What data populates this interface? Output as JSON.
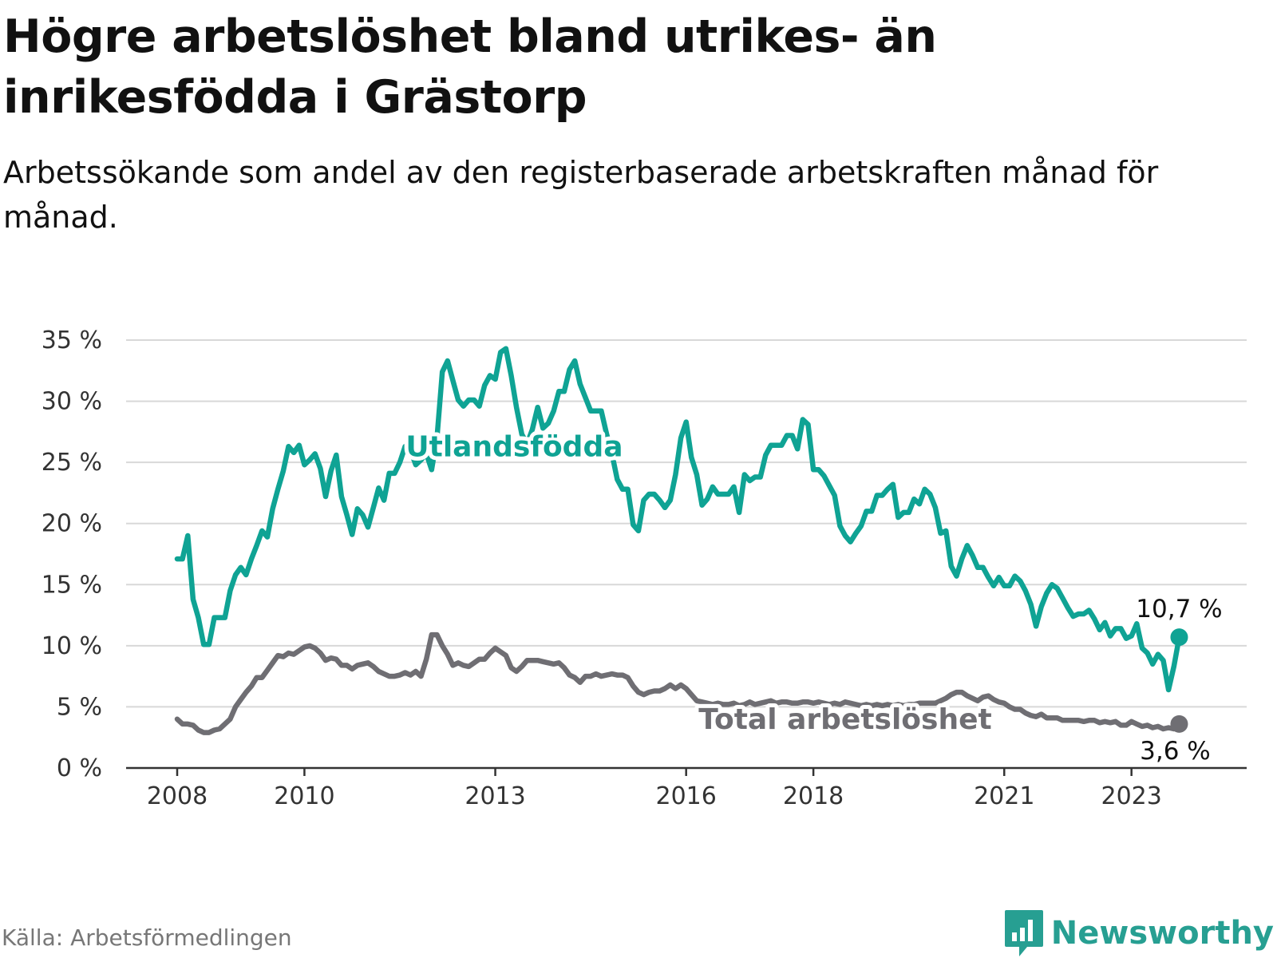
{
  "header": {
    "title": "Högre arbetslöshet bland utrikes- än inrikesfödda i Grästorp",
    "subtitle": "Arbetssökande som andel av den registerbaserade arbetskraften månad för månad."
  },
  "footer": {
    "source": "Källa: Arbetsförmedlingen",
    "brand": "Newsworthy"
  },
  "colors": {
    "utlandsfodda": "#0fa394",
    "total": "#6f6e73",
    "grid": "#d8d8d8",
    "axis": "#333333",
    "brand": "#279f92"
  },
  "chart_data": {
    "type": "line",
    "title": "Högre arbetslöshet bland utrikes- än inrikesfödda i Grästorp",
    "xlabel": "",
    "ylabel": "",
    "xlim": [
      2008.0,
      2024.083
    ],
    "ylim": [
      0,
      35
    ],
    "yticks": [
      0,
      5,
      10,
      15,
      20,
      25,
      30,
      35
    ],
    "ytick_labels": [
      "0 %",
      "5 %",
      "10 %",
      "15 %",
      "20 %",
      "25 %",
      "30 %",
      "35 %"
    ],
    "xticks": [
      2008,
      2010,
      2013,
      2016,
      2018,
      2021,
      2023
    ],
    "xtick_labels": [
      "2008",
      "2010",
      "2013",
      "2016",
      "2018",
      "2021",
      "2023"
    ],
    "grid": true,
    "legend": "inline labels",
    "series": [
      {
        "name": "Utlandsfödda",
        "label": "Utlandsfödda",
        "end_label": "10,7 %",
        "x": [
          2008.0,
          2008.083,
          2008.167,
          2008.25,
          2008.333,
          2008.417,
          2008.5,
          2008.583,
          2008.667,
          2008.75,
          2008.833,
          2008.917,
          2009.0,
          2009.083,
          2009.167,
          2009.25,
          2009.333,
          2009.417,
          2009.5,
          2009.583,
          2009.667,
          2009.75,
          2009.833,
          2009.917,
          2010.0,
          2010.083,
          2010.167,
          2010.25,
          2010.333,
          2010.417,
          2010.5,
          2010.583,
          2010.667,
          2010.75,
          2010.833,
          2010.917,
          2011.0,
          2011.083,
          2011.167,
          2011.25,
          2011.333,
          2011.417,
          2011.5,
          2011.583,
          2011.667,
          2011.75,
          2011.833,
          2011.917,
          2012.0,
          2012.083,
          2012.167,
          2012.25,
          2012.333,
          2012.417,
          2012.5,
          2012.583,
          2012.667,
          2012.75,
          2012.833,
          2012.917,
          2013.0,
          2013.083,
          2013.167,
          2013.25,
          2013.333,
          2013.417,
          2013.5,
          2013.583,
          2013.667,
          2013.75,
          2013.833,
          2013.917,
          2014.0,
          2014.083,
          2014.167,
          2014.25,
          2014.333,
          2014.417,
          2014.5,
          2014.583,
          2014.667,
          2014.75,
          2014.833,
          2014.917,
          2015.0,
          2015.083,
          2015.167,
          2015.25,
          2015.333,
          2015.417,
          2015.5,
          2015.583,
          2015.667,
          2015.75,
          2015.833,
          2015.917,
          2016.0,
          2016.083,
          2016.167,
          2016.25,
          2016.333,
          2016.417,
          2016.5,
          2016.583,
          2016.667,
          2016.75,
          2016.833,
          2016.917,
          2017.0,
          2017.083,
          2017.167,
          2017.25,
          2017.333,
          2017.417,
          2017.5,
          2017.583,
          2017.667,
          2017.75,
          2017.833,
          2017.917,
          2018.0,
          2018.083,
          2018.167,
          2018.25,
          2018.333,
          2018.417,
          2018.5,
          2018.583,
          2018.667,
          2018.75,
          2018.833,
          2018.917,
          2019.0,
          2019.083,
          2019.167,
          2019.25,
          2019.333,
          2019.417,
          2019.5,
          2019.583,
          2019.667,
          2019.75,
          2019.833,
          2019.917,
          2020.0,
          2020.083,
          2020.167,
          2020.25,
          2020.333,
          2020.417,
          2020.5,
          2020.583,
          2020.667,
          2020.75,
          2020.833,
          2020.917,
          2021.0,
          2021.083,
          2021.167,
          2021.25,
          2021.333,
          2021.417,
          2021.5,
          2021.583,
          2021.667,
          2021.75,
          2021.833,
          2021.917,
          2022.0,
          2022.083,
          2022.167,
          2022.25,
          2022.333,
          2022.417,
          2022.5,
          2022.583,
          2022.667,
          2022.75,
          2022.833,
          2022.917,
          2023.0,
          2023.083,
          2023.167,
          2023.25,
          2023.333,
          2023.417,
          2023.5,
          2023.583,
          2023.667,
          2023.75
        ],
        "values": [
          17.1,
          17.1,
          19.0,
          13.8,
          12.3,
          10.1,
          10.1,
          12.3,
          12.3,
          12.3,
          14.5,
          15.8,
          16.4,
          15.8,
          17.1,
          18.2,
          19.4,
          18.9,
          21.2,
          22.8,
          24.3,
          26.3,
          25.8,
          26.4,
          24.8,
          25.2,
          25.7,
          24.5,
          22.2,
          24.3,
          25.6,
          22.2,
          20.7,
          19.1,
          21.2,
          20.7,
          19.7,
          21.3,
          22.9,
          21.9,
          24.1,
          24.1,
          25.0,
          26.3,
          26.0,
          24.8,
          25.2,
          25.7,
          24.4,
          27.0,
          32.4,
          33.3,
          31.7,
          30.1,
          29.6,
          30.1,
          30.1,
          29.6,
          31.3,
          32.1,
          31.8,
          34.0,
          34.3,
          32.1,
          29.5,
          27.3,
          26.5,
          27.7,
          29.5,
          27.8,
          28.2,
          29.2,
          30.8,
          30.8,
          32.6,
          33.3,
          31.4,
          30.3,
          29.2,
          29.2,
          29.2,
          27.3,
          25.7,
          23.6,
          22.8,
          22.8,
          19.9,
          19.4,
          21.9,
          22.4,
          22.4,
          21.9,
          21.3,
          21.9,
          24.0,
          27.0,
          28.3,
          25.4,
          24.0,
          21.5,
          22.0,
          23.0,
          22.4,
          22.4,
          22.4,
          23.0,
          20.9,
          24.0,
          23.5,
          23.8,
          23.8,
          25.6,
          26.4,
          26.4,
          26.4,
          27.2,
          27.2,
          26.1,
          28.5,
          28.1,
          24.4,
          24.4,
          23.9,
          23.1,
          22.3,
          19.8,
          19.0,
          18.5,
          19.2,
          19.8,
          21.0,
          21.0,
          22.3,
          22.3,
          22.8,
          23.2,
          20.5,
          20.9,
          20.9,
          22.0,
          21.6,
          22.8,
          22.4,
          21.3,
          19.2,
          19.4,
          16.5,
          15.7,
          17.1,
          18.2,
          17.4,
          16.4,
          16.4,
          15.6,
          14.9,
          15.6,
          14.9,
          14.9,
          15.7,
          15.3,
          14.5,
          13.4,
          11.6,
          13.2,
          14.3,
          15.0,
          14.7,
          13.9,
          13.1,
          12.4,
          12.6,
          12.6,
          12.9,
          12.2,
          11.3,
          11.9,
          10.8,
          11.4,
          11.4,
          10.6,
          10.8,
          11.8,
          9.8,
          9.4,
          8.5,
          9.3,
          8.8,
          6.4,
          8.3,
          10.7
        ]
      },
      {
        "name": "Total arbetslöshet",
        "label": "Total arbetslöshet",
        "end_label": "3,6 %",
        "x": [
          2008.0,
          2008.083,
          2008.167,
          2008.25,
          2008.333,
          2008.417,
          2008.5,
          2008.583,
          2008.667,
          2008.75,
          2008.833,
          2008.917,
          2009.0,
          2009.083,
          2009.167,
          2009.25,
          2009.333,
          2009.417,
          2009.5,
          2009.583,
          2009.667,
          2009.75,
          2009.833,
          2009.917,
          2010.0,
          2010.083,
          2010.167,
          2010.25,
          2010.333,
          2010.417,
          2010.5,
          2010.583,
          2010.667,
          2010.75,
          2010.833,
          2010.917,
          2011.0,
          2011.083,
          2011.167,
          2011.25,
          2011.333,
          2011.417,
          2011.5,
          2011.583,
          2011.667,
          2011.75,
          2011.833,
          2011.917,
          2012.0,
          2012.083,
          2012.167,
          2012.25,
          2012.333,
          2012.417,
          2012.5,
          2012.583,
          2012.667,
          2012.75,
          2012.833,
          2012.917,
          2013.0,
          2013.083,
          2013.167,
          2013.25,
          2013.333,
          2013.417,
          2013.5,
          2013.583,
          2013.667,
          2013.75,
          2013.833,
          2013.917,
          2014.0,
          2014.083,
          2014.167,
          2014.25,
          2014.333,
          2014.417,
          2014.5,
          2014.583,
          2014.667,
          2014.75,
          2014.833,
          2014.917,
          2015.0,
          2015.083,
          2015.167,
          2015.25,
          2015.333,
          2015.417,
          2015.5,
          2015.583,
          2015.667,
          2015.75,
          2015.833,
          2015.917,
          2016.0,
          2016.083,
          2016.167,
          2016.25,
          2016.333,
          2016.417,
          2016.5,
          2016.583,
          2016.667,
          2016.75,
          2016.833,
          2016.917,
          2017.0,
          2017.083,
          2017.167,
          2017.25,
          2017.333,
          2017.417,
          2017.5,
          2017.583,
          2017.667,
          2017.75,
          2017.833,
          2017.917,
          2018.0,
          2018.083,
          2018.167,
          2018.25,
          2018.333,
          2018.417,
          2018.5,
          2018.583,
          2018.667,
          2018.75,
          2018.833,
          2018.917,
          2019.0,
          2019.083,
          2019.167,
          2019.25,
          2019.333,
          2019.417,
          2019.5,
          2019.583,
          2019.667,
          2019.75,
          2019.833,
          2019.917,
          2020.0,
          2020.083,
          2020.167,
          2020.25,
          2020.333,
          2020.417,
          2020.5,
          2020.583,
          2020.667,
          2020.75,
          2020.833,
          2020.917,
          2021.0,
          2021.083,
          2021.167,
          2021.25,
          2021.333,
          2021.417,
          2021.5,
          2021.583,
          2021.667,
          2021.75,
          2021.833,
          2021.917,
          2022.0,
          2022.083,
          2022.167,
          2022.25,
          2022.333,
          2022.417,
          2022.5,
          2022.583,
          2022.667,
          2022.75,
          2022.833,
          2022.917,
          2023.0,
          2023.083,
          2023.167,
          2023.25,
          2023.333,
          2023.417,
          2023.5,
          2023.583,
          2023.667,
          2023.75
        ],
        "values": [
          4.0,
          3.6,
          3.6,
          3.5,
          3.1,
          2.9,
          2.9,
          3.1,
          3.2,
          3.6,
          4.0,
          5.0,
          5.6,
          6.2,
          6.7,
          7.4,
          7.4,
          8.0,
          8.6,
          9.2,
          9.1,
          9.4,
          9.3,
          9.6,
          9.9,
          10.0,
          9.8,
          9.4,
          8.8,
          9.0,
          8.9,
          8.4,
          8.4,
          8.1,
          8.4,
          8.5,
          8.6,
          8.3,
          7.9,
          7.7,
          7.5,
          7.5,
          7.6,
          7.8,
          7.6,
          7.9,
          7.5,
          8.9,
          10.9,
          10.9,
          10.0,
          9.3,
          8.4,
          8.6,
          8.4,
          8.3,
          8.6,
          8.9,
          8.9,
          9.4,
          9.8,
          9.5,
          9.2,
          8.2,
          7.9,
          8.3,
          8.8,
          8.8,
          8.8,
          8.7,
          8.6,
          8.5,
          8.6,
          8.2,
          7.6,
          7.4,
          7.0,
          7.5,
          7.5,
          7.7,
          7.5,
          7.6,
          7.7,
          7.6,
          7.6,
          7.4,
          6.7,
          6.2,
          6.0,
          6.2,
          6.3,
          6.3,
          6.5,
          6.8,
          6.5,
          6.8,
          6.5,
          6.0,
          5.5,
          5.4,
          5.3,
          5.2,
          5.3,
          5.2,
          5.2,
          5.3,
          5.1,
          5.2,
          5.4,
          5.2,
          5.3,
          5.4,
          5.5,
          5.3,
          5.4,
          5.4,
          5.3,
          5.3,
          5.4,
          5.4,
          5.3,
          5.4,
          5.3,
          5.2,
          5.3,
          5.2,
          5.4,
          5.3,
          5.2,
          5.1,
          5.2,
          5.1,
          5.2,
          5.1,
          5.2,
          5.1,
          5.2,
          5.1,
          5.2,
          5.2,
          5.3,
          5.3,
          5.3,
          5.3,
          5.5,
          5.7,
          6.0,
          6.2,
          6.2,
          5.9,
          5.7,
          5.5,
          5.8,
          5.9,
          5.6,
          5.4,
          5.3,
          5.0,
          4.8,
          4.8,
          4.5,
          4.3,
          4.2,
          4.4,
          4.1,
          4.1,
          4.1,
          3.9,
          3.9,
          3.9,
          3.9,
          3.8,
          3.9,
          3.9,
          3.7,
          3.8,
          3.7,
          3.8,
          3.5,
          3.5,
          3.8,
          3.6,
          3.4,
          3.5,
          3.3,
          3.4,
          3.2,
          3.3,
          3.2,
          3.6
        ]
      }
    ]
  }
}
